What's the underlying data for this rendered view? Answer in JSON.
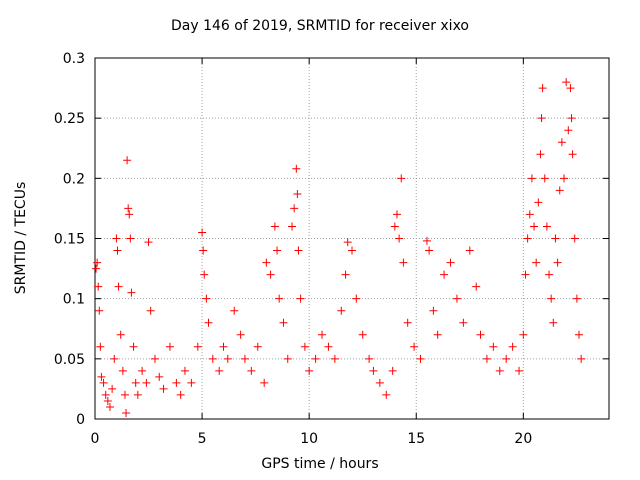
{
  "chart_data": {
    "type": "scatter",
    "title": "Day 146 of 2019, SRMTID for receiver xixo",
    "xlabel": "GPS time / hours",
    "ylabel": "SRMTID / TECUs",
    "xlim": [
      0,
      24
    ],
    "ylim": [
      0,
      0.3
    ],
    "xticks": [
      0,
      5,
      10,
      15,
      20
    ],
    "xtick_labels": [
      "0",
      "5",
      "10",
      "15",
      "20"
    ],
    "yticks": [
      0,
      0.05,
      0.1,
      0.15,
      0.2,
      0.25,
      0.3
    ],
    "ytick_labels": [
      "0",
      "0.05",
      "0.1",
      "0.15",
      "0.2",
      "0.25",
      "0.3"
    ],
    "grid": true,
    "marker": "+",
    "color": "#ff0000",
    "series": [
      {
        "name": "SRMTID",
        "points": [
          [
            0.05,
            0.125
          ],
          [
            0.1,
            0.13
          ],
          [
            0.15,
            0.11
          ],
          [
            0.2,
            0.09
          ],
          [
            0.25,
            0.06
          ],
          [
            0.3,
            0.035
          ],
          [
            0.4,
            0.03
          ],
          [
            0.5,
            0.02
          ],
          [
            0.6,
            0.015
          ],
          [
            0.7,
            0.01
          ],
          [
            0.8,
            0.025
          ],
          [
            0.9,
            0.05
          ],
          [
            1.0,
            0.15
          ],
          [
            1.05,
            0.14
          ],
          [
            1.1,
            0.11
          ],
          [
            1.2,
            0.07
          ],
          [
            1.3,
            0.04
          ],
          [
            1.4,
            0.02
          ],
          [
            1.45,
            0.005
          ],
          [
            1.5,
            0.215
          ],
          [
            1.55,
            0.175
          ],
          [
            1.6,
            0.17
          ],
          [
            1.65,
            0.15
          ],
          [
            1.7,
            0.105
          ],
          [
            1.8,
            0.06
          ],
          [
            1.9,
            0.03
          ],
          [
            2.0,
            0.02
          ],
          [
            2.2,
            0.04
          ],
          [
            2.4,
            0.03
          ],
          [
            2.5,
            0.147
          ],
          [
            2.6,
            0.09
          ],
          [
            2.8,
            0.05
          ],
          [
            3.0,
            0.035
          ],
          [
            3.2,
            0.025
          ],
          [
            3.5,
            0.06
          ],
          [
            3.8,
            0.03
          ],
          [
            4.0,
            0.02
          ],
          [
            4.2,
            0.04
          ],
          [
            4.5,
            0.03
          ],
          [
            4.8,
            0.06
          ],
          [
            5.0,
            0.155
          ],
          [
            5.05,
            0.14
          ],
          [
            5.1,
            0.12
          ],
          [
            5.2,
            0.1
          ],
          [
            5.3,
            0.08
          ],
          [
            5.5,
            0.05
          ],
          [
            5.8,
            0.04
          ],
          [
            6.0,
            0.06
          ],
          [
            6.2,
            0.05
          ],
          [
            6.5,
            0.09
          ],
          [
            6.8,
            0.07
          ],
          [
            7.0,
            0.05
          ],
          [
            7.3,
            0.04
          ],
          [
            7.6,
            0.06
          ],
          [
            7.9,
            0.03
          ],
          [
            8.0,
            0.13
          ],
          [
            8.2,
            0.12
          ],
          [
            8.4,
            0.16
          ],
          [
            8.5,
            0.14
          ],
          [
            8.6,
            0.1
          ],
          [
            8.8,
            0.08
          ],
          [
            9.0,
            0.05
          ],
          [
            9.2,
            0.16
          ],
          [
            9.3,
            0.175
          ],
          [
            9.4,
            0.208
          ],
          [
            9.45,
            0.187
          ],
          [
            9.5,
            0.14
          ],
          [
            9.6,
            0.1
          ],
          [
            9.8,
            0.06
          ],
          [
            10.0,
            0.04
          ],
          [
            10.3,
            0.05
          ],
          [
            10.6,
            0.07
          ],
          [
            10.9,
            0.06
          ],
          [
            11.2,
            0.05
          ],
          [
            11.5,
            0.09
          ],
          [
            11.7,
            0.12
          ],
          [
            11.8,
            0.147
          ],
          [
            12.0,
            0.14
          ],
          [
            12.2,
            0.1
          ],
          [
            12.5,
            0.07
          ],
          [
            12.8,
            0.05
          ],
          [
            13.0,
            0.04
          ],
          [
            13.3,
            0.03
          ],
          [
            13.6,
            0.02
          ],
          [
            13.9,
            0.04
          ],
          [
            14.0,
            0.16
          ],
          [
            14.1,
            0.17
          ],
          [
            14.2,
            0.15
          ],
          [
            14.3,
            0.2
          ],
          [
            14.4,
            0.13
          ],
          [
            14.6,
            0.08
          ],
          [
            14.9,
            0.06
          ],
          [
            15.2,
            0.05
          ],
          [
            15.5,
            0.148
          ],
          [
            15.6,
            0.14
          ],
          [
            15.8,
            0.09
          ],
          [
            16.0,
            0.07
          ],
          [
            16.3,
            0.12
          ],
          [
            16.6,
            0.13
          ],
          [
            16.9,
            0.1
          ],
          [
            17.2,
            0.08
          ],
          [
            17.5,
            0.14
          ],
          [
            17.8,
            0.11
          ],
          [
            18.0,
            0.07
          ],
          [
            18.3,
            0.05
          ],
          [
            18.6,
            0.06
          ],
          [
            18.9,
            0.04
          ],
          [
            19.2,
            0.05
          ],
          [
            19.5,
            0.06
          ],
          [
            19.8,
            0.04
          ],
          [
            20.0,
            0.07
          ],
          [
            20.1,
            0.12
          ],
          [
            20.2,
            0.15
          ],
          [
            20.3,
            0.17
          ],
          [
            20.4,
            0.2
          ],
          [
            20.5,
            0.16
          ],
          [
            20.6,
            0.13
          ],
          [
            20.7,
            0.18
          ],
          [
            20.8,
            0.22
          ],
          [
            20.85,
            0.25
          ],
          [
            20.9,
            0.275
          ],
          [
            21.0,
            0.2
          ],
          [
            21.1,
            0.16
          ],
          [
            21.2,
            0.12
          ],
          [
            21.3,
            0.1
          ],
          [
            21.4,
            0.08
          ],
          [
            21.5,
            0.15
          ],
          [
            21.6,
            0.13
          ],
          [
            21.7,
            0.19
          ],
          [
            21.8,
            0.23
          ],
          [
            21.9,
            0.2
          ],
          [
            22.0,
            0.28
          ],
          [
            22.1,
            0.24
          ],
          [
            22.2,
            0.275
          ],
          [
            22.25,
            0.25
          ],
          [
            22.3,
            0.22
          ],
          [
            22.4,
            0.15
          ],
          [
            22.5,
            0.1
          ],
          [
            22.6,
            0.07
          ],
          [
            22.7,
            0.05
          ]
        ]
      }
    ]
  }
}
